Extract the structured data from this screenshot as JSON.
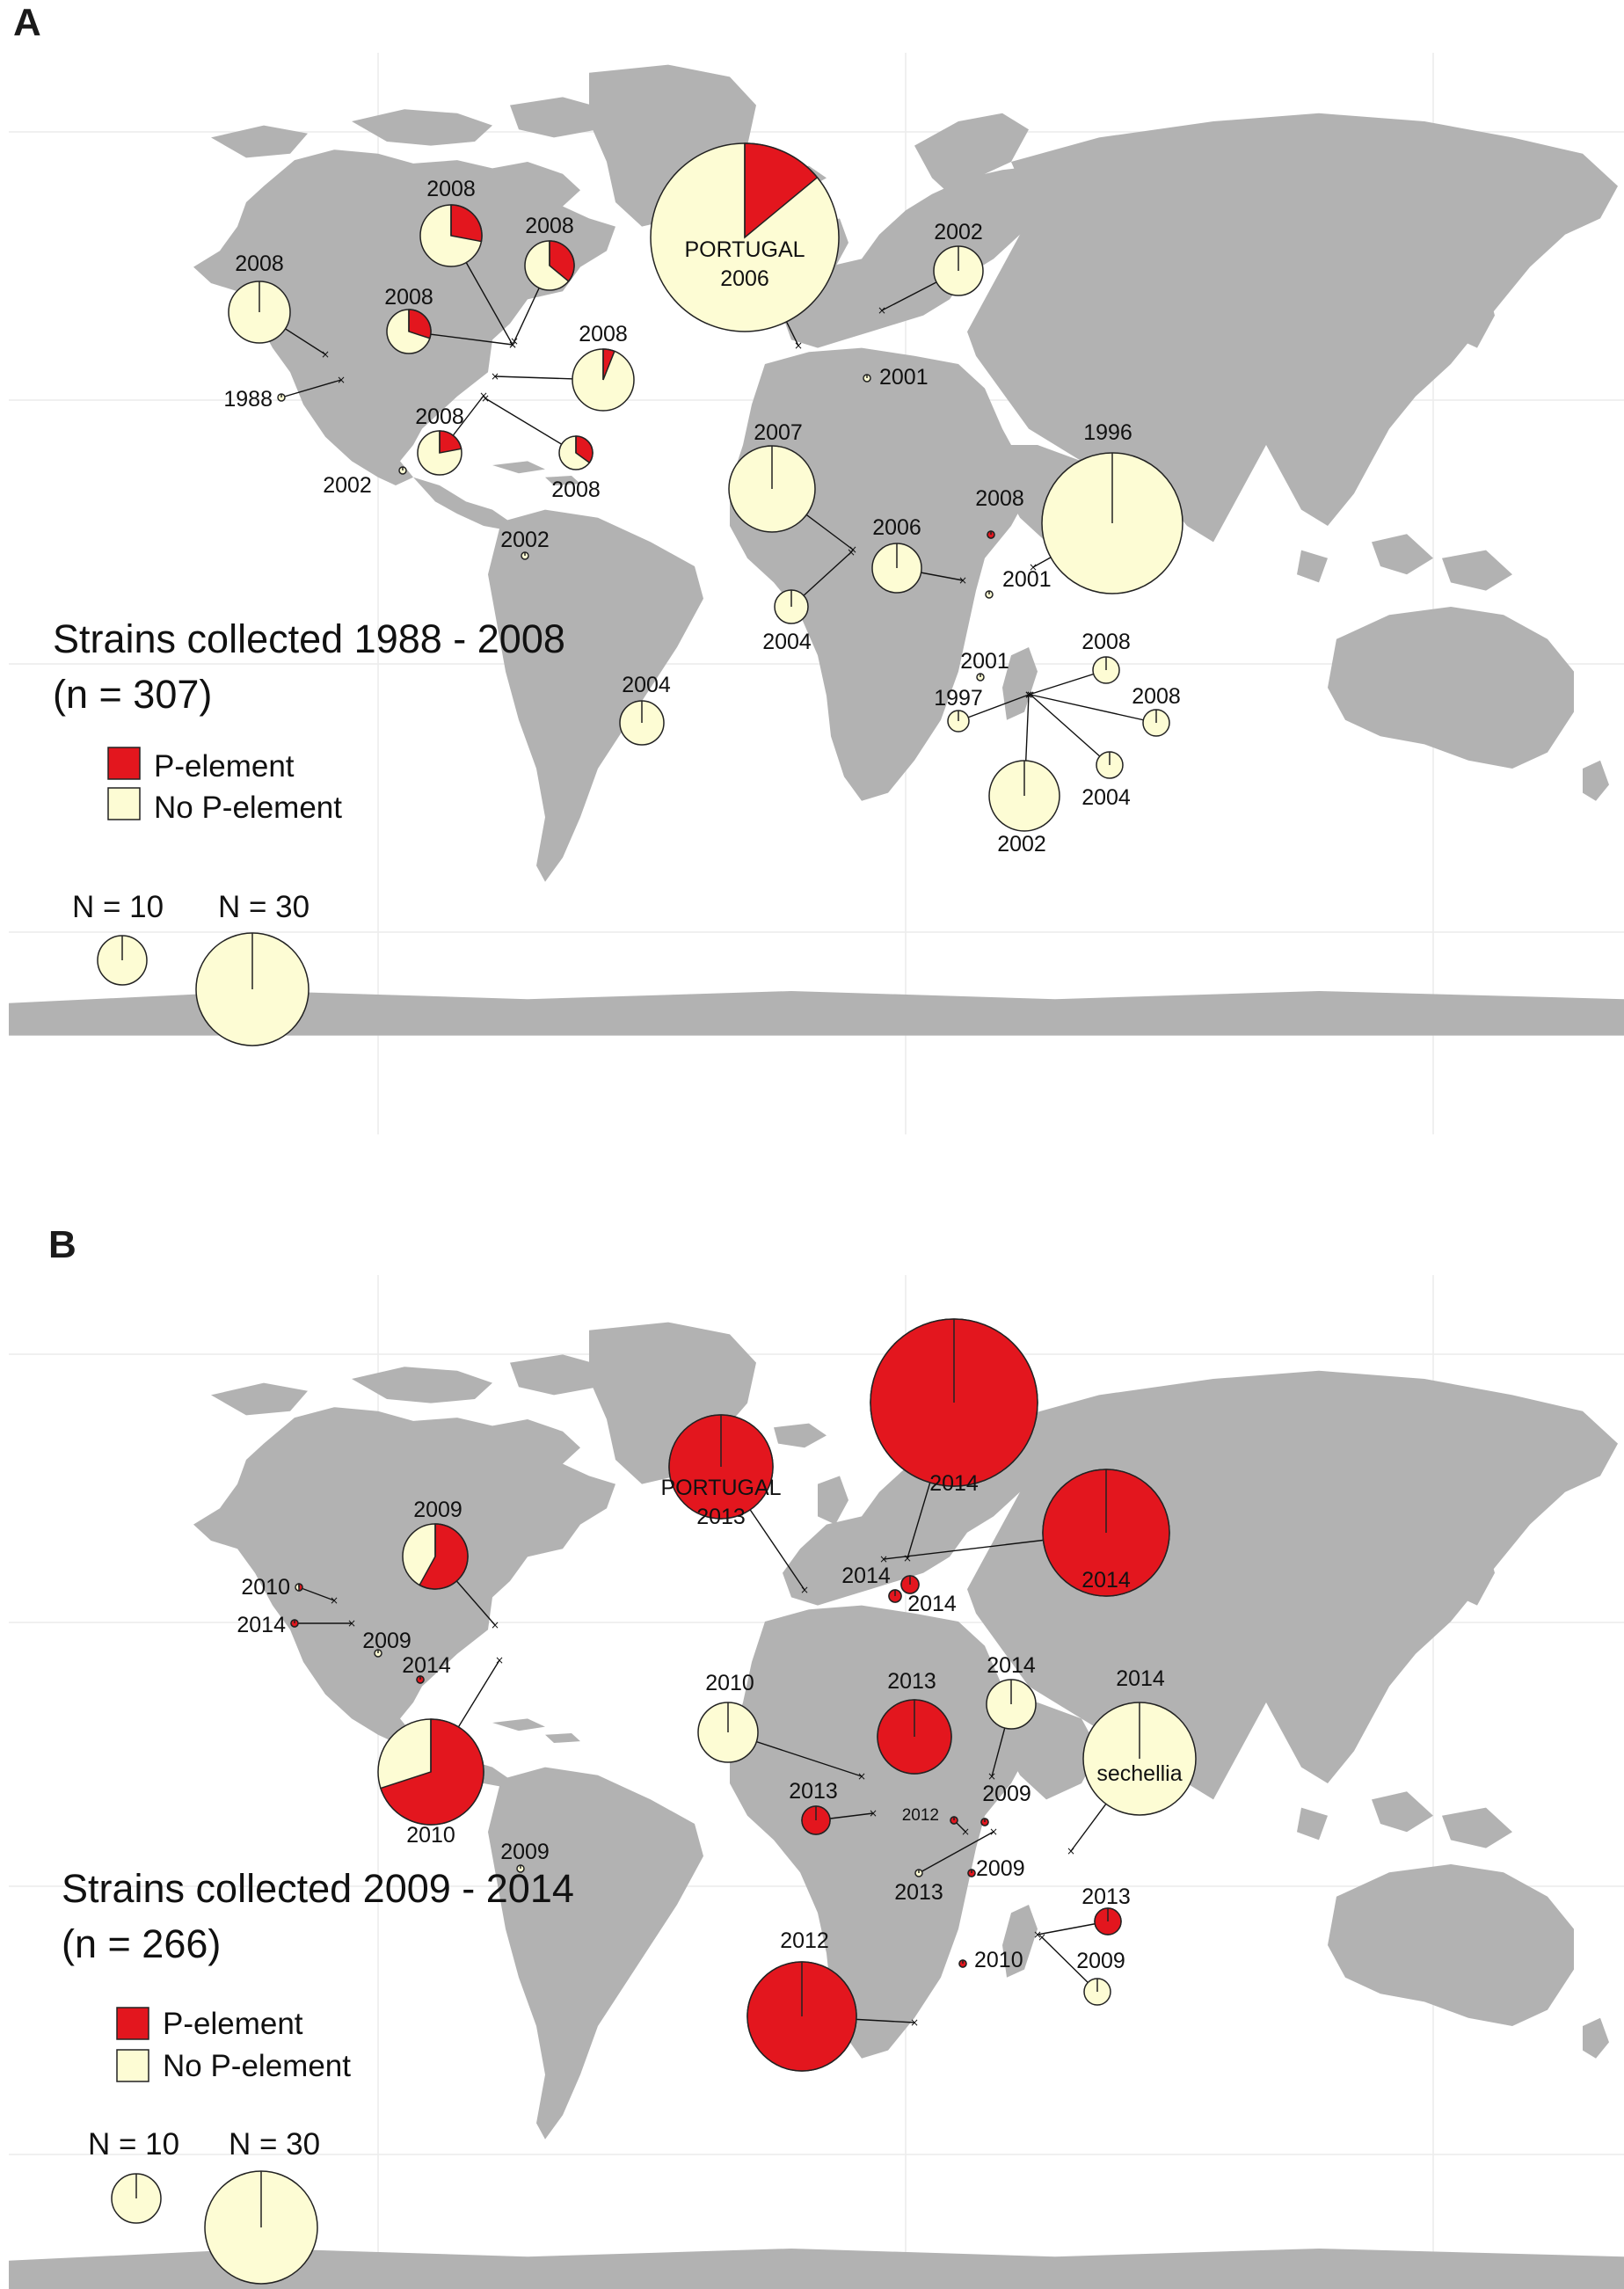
{
  "colors": {
    "p_element": "#e3161e",
    "no_p_element": "#fdfcd4",
    "land": "#b2b2b2",
    "outline": "#222222"
  },
  "panels": [
    {
      "letter": "A",
      "title_line1": "Strains collected 1988 - 2008",
      "title_line2": "(n = 307)",
      "legend": {
        "p_label": "P-element",
        "no_label": "No P-element"
      },
      "size_key": [
        {
          "label": "N = 10",
          "n": 10
        },
        {
          "label": "N = 30",
          "n": 30
        }
      ],
      "samples": [
        {
          "label": "2008",
          "p_frac": 0.0
        },
        {
          "label": "1988",
          "p_frac": 0.0
        },
        {
          "label": "2008",
          "p_frac": 0.28
        },
        {
          "label": "2008",
          "p_frac": 0.3
        },
        {
          "label": "2008",
          "p_frac": 0.36
        },
        {
          "label": "2008",
          "p_frac": 0.06
        },
        {
          "label": "2008",
          "p_frac": 0.22
        },
        {
          "label": "2008",
          "p_frac": 0.35
        },
        {
          "label": "2002",
          "p_frac": 0.0
        },
        {
          "label": "2002",
          "p_frac": 0.0
        },
        {
          "label": "2004",
          "p_frac": 0.0
        },
        {
          "label": "PORTUGAL",
          "label2": "2006",
          "p_frac": 0.14
        },
        {
          "label": "2002",
          "p_frac": 0.0
        },
        {
          "label": "2001",
          "p_frac": 0.0
        },
        {
          "label": "2007",
          "p_frac": 0.0
        },
        {
          "label": "2004",
          "p_frac": 0.0
        },
        {
          "label": "2006",
          "p_frac": 0.0
        },
        {
          "label": "2008",
          "p_frac": 1.0
        },
        {
          "label": "2001",
          "p_frac": 0.0
        },
        {
          "label": "1996",
          "p_frac": 0.0
        },
        {
          "label": "2001",
          "p_frac": 0.0
        },
        {
          "label": "1997",
          "p_frac": 0.0
        },
        {
          "label": "2008",
          "p_frac": 0.0
        },
        {
          "label": "2008",
          "p_frac": 0.0
        },
        {
          "label": "2004",
          "p_frac": 0.0
        },
        {
          "label": "2002",
          "p_frac": 0.0
        }
      ]
    },
    {
      "letter": "B",
      "title_line1": "Strains collected 2009 - 2014",
      "title_line2": "(n = 266)",
      "legend": {
        "p_label": "P-element",
        "no_label": "No P-element"
      },
      "size_key": [
        {
          "label": "N = 10",
          "n": 10
        },
        {
          "label": "N = 30",
          "n": 30
        }
      ],
      "samples": [
        {
          "label": "2010",
          "p_frac": 0.5
        },
        {
          "label": "2014",
          "p_frac": 1.0
        },
        {
          "label": "2009",
          "p_frac": 0.0
        },
        {
          "label": "2014",
          "p_frac": 1.0
        },
        {
          "label": "2009",
          "p_frac": 0.58
        },
        {
          "label": "2010",
          "p_frac": 0.7
        },
        {
          "label": "2009",
          "p_frac": 0.0
        },
        {
          "label": "PORTUGAL",
          "label2": "2013",
          "p_frac": 1.0
        },
        {
          "label": "2014",
          "p_frac": 1.0
        },
        {
          "label": "2014",
          "p_frac": 1.0
        },
        {
          "label": "2014",
          "p_frac": 1.0
        },
        {
          "label": "2014",
          "p_frac": 1.0
        },
        {
          "label": "2010",
          "p_frac": 0.0
        },
        {
          "label": "2013",
          "p_frac": 1.0
        },
        {
          "label": "2013",
          "p_frac": 1.0
        },
        {
          "label": "2014",
          "p_frac": 0.0
        },
        {
          "label": "2014",
          "label2": "sechellia",
          "p_frac": 0.0
        },
        {
          "label": "2012",
          "p_frac": 1.0
        },
        {
          "label": "2009",
          "p_frac": 1.0
        },
        {
          "label": "2013",
          "p_frac": 0.0
        },
        {
          "label": "2009",
          "p_frac": 1.0
        },
        {
          "label": "2010",
          "p_frac": 1.0
        },
        {
          "label": "2012",
          "p_frac": 1.0
        },
        {
          "label": "2013",
          "p_frac": 1.0
        },
        {
          "label": "2009",
          "p_frac": 0.0
        }
      ]
    }
  ]
}
